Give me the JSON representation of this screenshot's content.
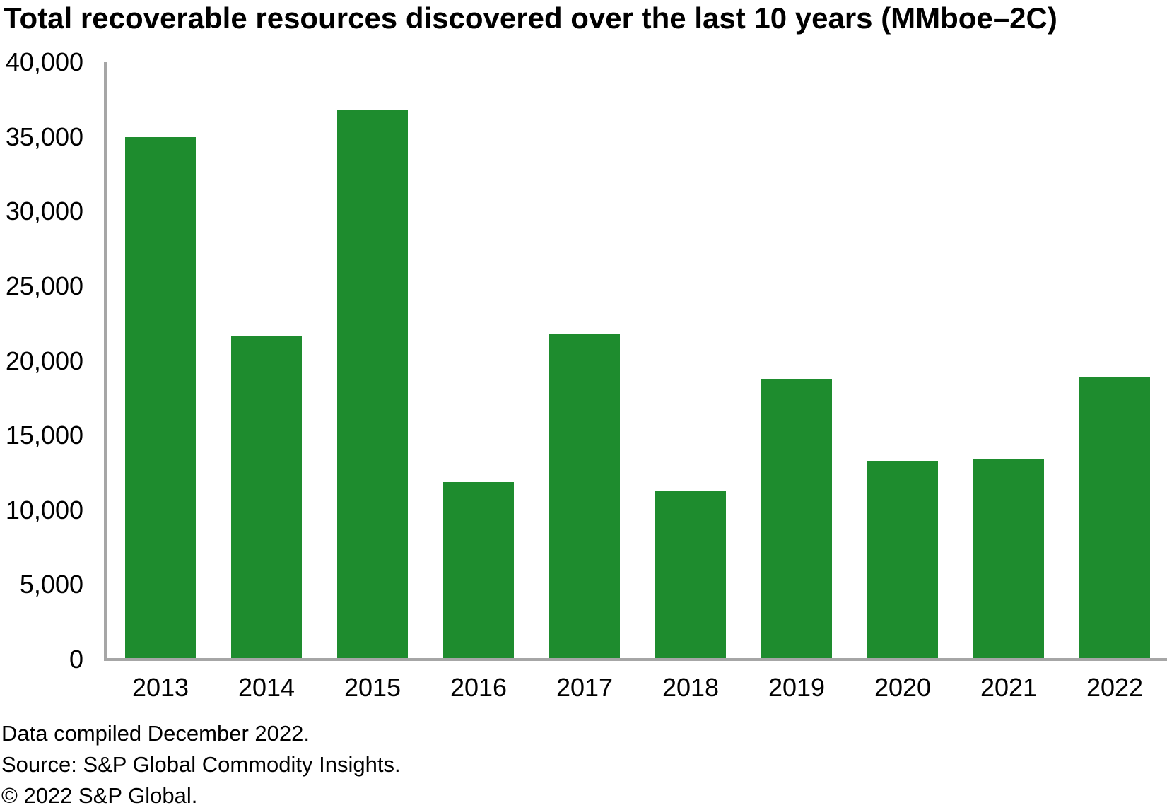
{
  "title": "Total recoverable resources discovered over the last 10 years (MMboe–2C)",
  "chart_data": {
    "type": "bar",
    "title": "Total recoverable resources discovered over the last 10 years (MMboe–2C)",
    "categories": [
      "2013",
      "2014",
      "2015",
      "2016",
      "2017",
      "2018",
      "2019",
      "2020",
      "2021",
      "2022"
    ],
    "values": [
      35000,
      21700,
      36800,
      11900,
      21800,
      11300,
      18800,
      13300,
      13400,
      18900
    ],
    "xlabel": "",
    "ylabel": "",
    "ylim": [
      0,
      40000
    ],
    "ytick_step": 5000,
    "ytick_labels_top_to_bottom": [
      "40,000",
      "35,000",
      "30,000",
      "25,000",
      "20,000",
      "15,000",
      "10,000",
      "5,000",
      "0"
    ],
    "grid": false,
    "legend": "none",
    "bar_color": "#1e8c2e",
    "axis_color": "#a6a6a6",
    "text_color": "#000000",
    "background_color": "#ffffff"
  },
  "footer": {
    "line1": "Data compiled December 2022.",
    "line2": "Source: S&P Global Commodity Insights.",
    "line3": "© 2022 S&P Global."
  }
}
